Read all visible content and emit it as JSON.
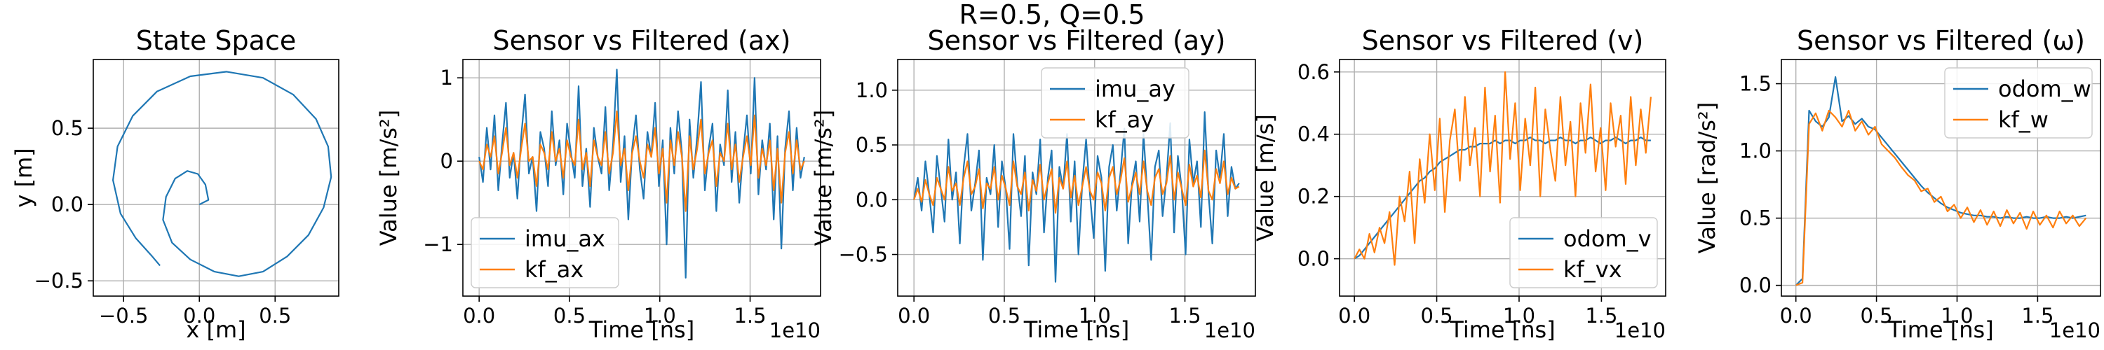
{
  "figure": {
    "suptitle": "R=0.5, Q=0.5"
  },
  "colors": {
    "blue": "#1f77b4",
    "orange": "#ff7f0e"
  },
  "chart_data": [
    {
      "type": "line",
      "title": "State Space",
      "xlabel": "x [m]",
      "ylabel": "y [m]",
      "xlim": [
        -0.7,
        0.92
      ],
      "ylim": [
        -0.6,
        0.95
      ],
      "xticks": [
        -0.5,
        0.0,
        0.5
      ],
      "xtick_labels": [
        "−0.5",
        "0.0",
        "0.5"
      ],
      "yticks": [
        -0.5,
        0.0,
        0.5
      ],
      "ytick_labels": [
        "−0.5",
        "0.0",
        "0.5"
      ],
      "grid": true,
      "series": [
        {
          "color": "blue",
          "trajectory": "expanding spiral",
          "x": [
            0.0,
            0.06,
            0.04,
            -0.01,
            -0.08,
            -0.16,
            -0.22,
            -0.24,
            -0.18,
            -0.06,
            0.1,
            0.26,
            0.42,
            0.58,
            0.72,
            0.82,
            0.87,
            0.85,
            0.77,
            0.62,
            0.42,
            0.18,
            -0.06,
            -0.28,
            -0.44,
            -0.54,
            -0.57,
            -0.52,
            -0.42,
            -0.32,
            -0.26
          ],
          "y": [
            0.0,
            0.03,
            0.13,
            0.2,
            0.22,
            0.17,
            0.05,
            -0.1,
            -0.25,
            -0.36,
            -0.44,
            -0.47,
            -0.44,
            -0.34,
            -0.2,
            -0.02,
            0.18,
            0.38,
            0.56,
            0.72,
            0.83,
            0.87,
            0.84,
            0.74,
            0.58,
            0.38,
            0.16,
            -0.06,
            -0.22,
            -0.33,
            -0.4
          ]
        }
      ]
    },
    {
      "type": "line",
      "title": "Sensor vs Filtered (ax)",
      "xlabel": "Time [ns]",
      "ylabel": "Value [m/s²]",
      "x_offset_label": "1e10",
      "xlim": [
        -0.09,
        1.89
      ],
      "ylim": [
        -1.62,
        1.22
      ],
      "xticks": [
        0.0,
        0.5,
        1.0,
        1.5
      ],
      "xtick_labels": [
        "0.0",
        "0.5",
        "1.0",
        "1.5"
      ],
      "yticks": [
        -1,
        0,
        1
      ],
      "ytick_labels": [
        "−1",
        "0",
        "1"
      ],
      "grid": true,
      "legend": {
        "position": "lower-left",
        "entries": [
          "imu_ax",
          "kf_ax"
        ]
      },
      "x_range": [
        0.0,
        1.8
      ],
      "series": [
        {
          "name": "imu_ax",
          "color": "blue",
          "values": [
            0.05,
            -0.25,
            0.4,
            -0.1,
            0.55,
            -0.35,
            0.2,
            0.7,
            -0.2,
            0.1,
            -0.45,
            0.3,
            0.8,
            -0.15,
            0.05,
            -0.6,
            0.35,
            0.15,
            -0.3,
            0.6,
            -0.05,
            0.25,
            -0.4,
            0.45,
            0.1,
            -0.2,
            0.9,
            -0.3,
            0.15,
            -0.55,
            0.4,
            0.05,
            -0.15,
            0.65,
            -0.35,
            0.2,
            1.1,
            -0.25,
            0.3,
            -0.7,
            0.15,
            0.55,
            -0.1,
            -0.45,
            0.35,
            0.05,
            0.7,
            -0.3,
            0.25,
            -1.0,
            0.4,
            -0.15,
            0.6,
            0.1,
            -1.4,
            0.5,
            -0.2,
            0.3,
            0.95,
            -0.35,
            0.15,
            0.45,
            -0.6,
            0.2,
            -0.05,
            0.85,
            -0.25,
            0.35,
            -0.5,
            0.1,
            0.55,
            -0.15,
            1.0,
            -0.4,
            0.25,
            -0.1,
            0.45,
            -0.7,
            0.3,
            -1.05,
            0.15,
            0.6,
            -0.35,
            0.4,
            -0.2,
            0.05
          ]
        },
        {
          "name": "kf_ax",
          "color": "orange",
          "values": [
            0.0,
            -0.1,
            0.2,
            0.05,
            0.3,
            -0.15,
            0.1,
            0.4,
            -0.05,
            0.1,
            -0.2,
            0.15,
            0.45,
            0.0,
            0.05,
            -0.3,
            0.2,
            0.1,
            -0.1,
            0.35,
            0.0,
            0.15,
            -0.2,
            0.25,
            0.05,
            -0.05,
            0.5,
            -0.1,
            0.1,
            -0.3,
            0.25,
            0.05,
            -0.05,
            0.35,
            -0.15,
            0.1,
            0.6,
            -0.05,
            0.15,
            -0.35,
            0.1,
            0.3,
            0.0,
            -0.2,
            0.2,
            0.05,
            0.4,
            -0.15,
            0.15,
            -0.5,
            0.25,
            -0.05,
            0.35,
            0.05,
            -0.6,
            0.3,
            -0.1,
            0.15,
            0.5,
            -0.15,
            0.1,
            0.25,
            -0.3,
            0.1,
            0.0,
            0.45,
            -0.1,
            0.2,
            -0.25,
            0.05,
            0.3,
            -0.05,
            0.55,
            -0.2,
            0.15,
            -0.05,
            0.25,
            -0.35,
            0.15,
            -0.5,
            0.1,
            0.35,
            -0.15,
            0.25,
            -0.1,
            0.0
          ]
        }
      ]
    },
    {
      "type": "line",
      "title": "Sensor vs Filtered (ay)",
      "xlabel": "Time [ns]",
      "ylabel": "Value [m/s²]",
      "x_offset_label": "1e10",
      "xlim": [
        -0.09,
        1.89
      ],
      "ylim": [
        -0.88,
        1.28
      ],
      "xticks": [
        0.0,
        0.5,
        1.0,
        1.5
      ],
      "xtick_labels": [
        "0.0",
        "0.5",
        "1.0",
        "1.5"
      ],
      "yticks": [
        -0.5,
        0.0,
        0.5,
        1.0
      ],
      "ytick_labels": [
        "−0.5",
        "0.0",
        "0.5",
        "1.0"
      ],
      "grid": true,
      "legend": {
        "position": "upper-center",
        "entries": [
          "imu_ay",
          "kf_ay"
        ]
      },
      "x_range": [
        0.0,
        1.8
      ],
      "series": [
        {
          "name": "imu_ay",
          "color": "blue",
          "values": [
            0.0,
            0.2,
            -0.1,
            0.35,
            0.05,
            -0.3,
            0.4,
            0.1,
            -0.2,
            0.55,
            0.0,
            0.25,
            -0.4,
            0.3,
            0.6,
            -0.1,
            0.15,
            0.45,
            -0.55,
            0.2,
            0.05,
            0.5,
            -0.25,
            0.35,
            0.1,
            -0.45,
            0.6,
            0.15,
            -0.15,
            0.4,
            -0.6,
            0.25,
            0.05,
            0.55,
            -0.3,
            0.2,
            0.45,
            -0.75,
            0.3,
            0.1,
            0.6,
            -0.2,
            0.35,
            -0.5,
            0.15,
            0.55,
            0.05,
            -0.35,
            0.4,
            0.2,
            -0.65,
            0.3,
            0.5,
            -0.1,
            0.25,
            0.65,
            -0.4,
            0.15,
            0.35,
            -0.2,
            0.6,
            0.05,
            -0.55,
            0.3,
            0.45,
            -0.15,
            0.2,
            0.7,
            -0.3,
            0.4,
            0.1,
            -0.5,
            0.55,
            0.15,
            0.35,
            -0.25,
            0.8,
            0.05,
            -0.4,
            0.45,
            0.2,
            0.6,
            -0.15,
            0.3,
            0.1,
            0.15
          ]
        },
        {
          "name": "kf_ay",
          "color": "orange",
          "values": [
            0.0,
            0.1,
            -0.02,
            0.18,
            0.05,
            -0.05,
            0.2,
            0.1,
            0.0,
            0.3,
            0.08,
            0.15,
            -0.05,
            0.2,
            0.35,
            0.05,
            0.12,
            0.28,
            -0.08,
            0.15,
            0.1,
            0.3,
            0.0,
            0.22,
            0.1,
            -0.05,
            0.35,
            0.12,
            0.05,
            0.25,
            -0.1,
            0.18,
            0.08,
            0.32,
            0.0,
            0.15,
            0.28,
            -0.12,
            0.2,
            0.1,
            0.35,
            0.02,
            0.22,
            -0.05,
            0.12,
            0.3,
            0.08,
            0.0,
            0.25,
            0.15,
            -0.1,
            0.2,
            0.3,
            0.05,
            0.18,
            0.38,
            -0.02,
            0.12,
            0.25,
            0.05,
            0.35,
            0.08,
            -0.05,
            0.2,
            0.28,
            0.05,
            0.15,
            0.4,
            0.0,
            0.25,
            0.1,
            -0.05,
            0.32,
            0.12,
            0.22,
            0.02,
            0.45,
            0.08,
            0.0,
            0.28,
            0.15,
            0.35,
            0.05,
            0.2,
            0.1,
            0.12
          ]
        }
      ]
    },
    {
      "type": "line",
      "title": "Sensor vs Filtered (v)",
      "xlabel": "Time [ns]",
      "ylabel": "Value [m/s]",
      "x_offset_label": "1e10",
      "xlim": [
        -0.09,
        1.89
      ],
      "ylim": [
        -0.12,
        0.64
      ],
      "xticks": [
        0.0,
        0.5,
        1.0,
        1.5
      ],
      "xtick_labels": [
        "0.0",
        "0.5",
        "1.0",
        "1.5"
      ],
      "yticks": [
        0.0,
        0.2,
        0.4,
        0.6
      ],
      "ytick_labels": [
        "0.0",
        "0.2",
        "0.4",
        "0.6"
      ],
      "grid": true,
      "legend": {
        "position": "lower-right",
        "entries": [
          "odom_v",
          "kf_vx"
        ]
      },
      "x_range": [
        0.0,
        1.8
      ],
      "series": [
        {
          "name": "odom_v",
          "color": "blue",
          "values": [
            0.0,
            0.01,
            0.03,
            0.05,
            0.07,
            0.09,
            0.11,
            0.13,
            0.15,
            0.17,
            0.19,
            0.21,
            0.23,
            0.25,
            0.26,
            0.28,
            0.29,
            0.31,
            0.32,
            0.33,
            0.34,
            0.35,
            0.35,
            0.36,
            0.36,
            0.37,
            0.37,
            0.37,
            0.38,
            0.37,
            0.38,
            0.38,
            0.37,
            0.38,
            0.38,
            0.39,
            0.38,
            0.38,
            0.37,
            0.38,
            0.38,
            0.39,
            0.38,
            0.38,
            0.37,
            0.38,
            0.38,
            0.39,
            0.38,
            0.37,
            0.38,
            0.38,
            0.39,
            0.38,
            0.37,
            0.38,
            0.38,
            0.39,
            0.38,
            0.38
          ]
        },
        {
          "name": "kf_vx",
          "color": "orange",
          "values": [
            0.0,
            0.03,
            0.0,
            0.08,
            0.02,
            0.1,
            0.05,
            0.15,
            -0.02,
            0.2,
            0.12,
            0.28,
            0.05,
            0.32,
            0.18,
            0.4,
            0.22,
            0.45,
            0.15,
            0.38,
            0.48,
            0.25,
            0.52,
            0.3,
            0.42,
            0.2,
            0.55,
            0.28,
            0.46,
            0.18,
            0.6,
            0.32,
            0.5,
            0.22,
            0.45,
            0.3,
            0.55,
            0.2,
            0.48,
            0.35,
            0.25,
            0.52,
            0.3,
            0.44,
            0.2,
            0.5,
            0.34,
            0.56,
            0.28,
            0.42,
            0.22,
            0.5,
            0.36,
            0.46,
            0.24,
            0.52,
            0.3,
            0.48,
            0.34,
            0.52
          ]
        }
      ]
    },
    {
      "type": "line",
      "title": "Sensor vs Filtered (ω)",
      "xlabel": "Time [ns]",
      "ylabel": "Value [rad/s²]",
      "x_offset_label": "1e10",
      "xlim": [
        -0.09,
        1.89
      ],
      "ylim": [
        -0.08,
        1.68
      ],
      "xticks": [
        0.0,
        0.5,
        1.0,
        1.5
      ],
      "xtick_labels": [
        "0.0",
        "0.5",
        "1.0",
        "1.5"
      ],
      "yticks": [
        0.0,
        0.5,
        1.0,
        1.5
      ],
      "ytick_labels": [
        "0.0",
        "0.5",
        "1.0",
        "1.5"
      ],
      "grid": true,
      "legend": {
        "position": "upper-right",
        "entries": [
          "odom_w",
          "kf_w"
        ]
      },
      "x_range": [
        0.0,
        1.8
      ],
      "series": [
        {
          "name": "odom_w",
          "color": "blue",
          "values": [
            0.0,
            0.05,
            1.3,
            1.22,
            1.18,
            1.25,
            1.55,
            1.22,
            1.26,
            1.2,
            1.24,
            1.18,
            1.16,
            1.1,
            1.04,
            0.98,
            0.92,
            0.86,
            0.8,
            0.74,
            0.69,
            0.65,
            0.61,
            0.58,
            0.56,
            0.54,
            0.53,
            0.52,
            0.52,
            0.51,
            0.51,
            0.5,
            0.51,
            0.5,
            0.5,
            0.51,
            0.5,
            0.5,
            0.51,
            0.5,
            0.5,
            0.51,
            0.5,
            0.51,
            0.52
          ]
        },
        {
          "name": "kf_w",
          "color": "orange",
          "values": [
            0.0,
            0.02,
            1.2,
            1.28,
            1.15,
            1.3,
            1.25,
            1.18,
            1.3,
            1.15,
            1.22,
            1.12,
            1.18,
            1.05,
            1.0,
            0.95,
            0.88,
            0.82,
            0.78,
            0.7,
            0.72,
            0.62,
            0.66,
            0.55,
            0.6,
            0.5,
            0.58,
            0.47,
            0.56,
            0.45,
            0.55,
            0.44,
            0.56,
            0.46,
            0.54,
            0.42,
            0.55,
            0.45,
            0.52,
            0.43,
            0.55,
            0.46,
            0.52,
            0.44,
            0.5
          ]
        }
      ]
    }
  ]
}
